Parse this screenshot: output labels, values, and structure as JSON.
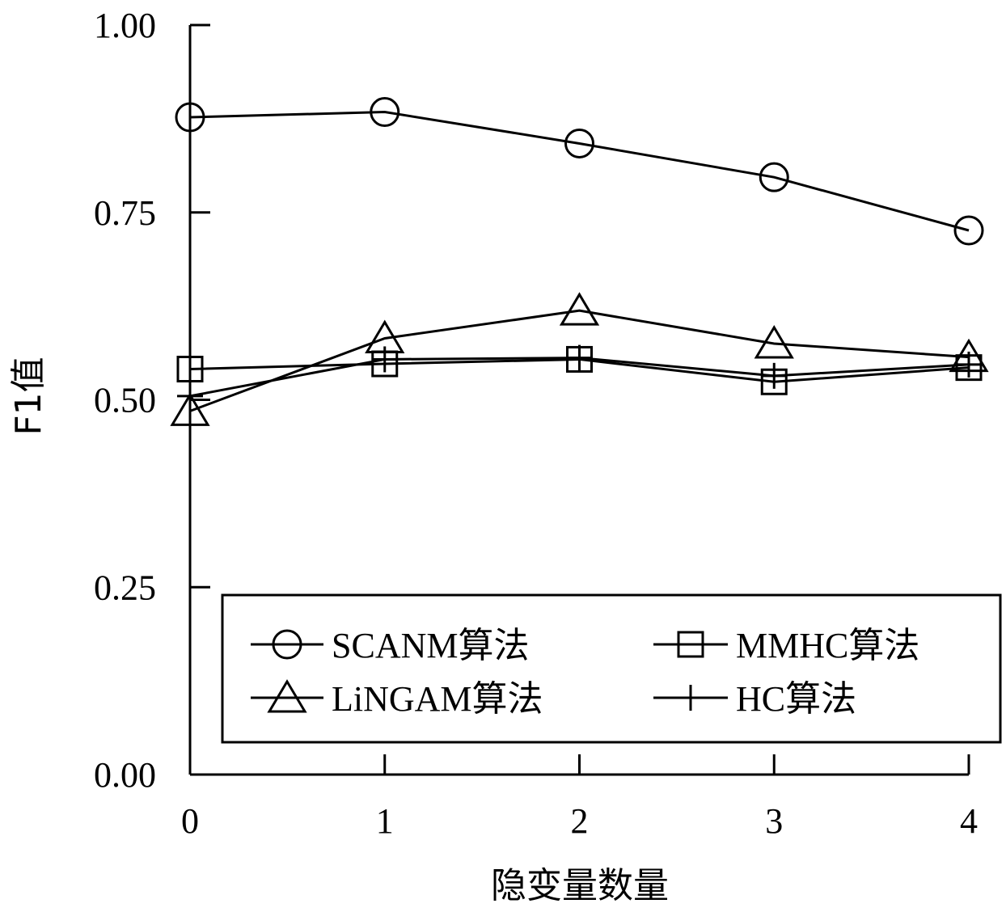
{
  "chart_data": {
    "type": "line",
    "xlabel": "隐变量数量",
    "ylabel": "F1值",
    "x": [
      0,
      1,
      2,
      3,
      4
    ],
    "xticks": [
      "0",
      "1",
      "2",
      "3",
      "4"
    ],
    "yticks": [
      "0.00",
      "0.25",
      "0.50",
      "0.75",
      "1.00"
    ],
    "xlim": [
      0,
      4
    ],
    "ylim": [
      0,
      1.0
    ],
    "grid": false,
    "legend_position": "bottom-right",
    "series": [
      {
        "name": "SCANM算法",
        "marker": "circle",
        "values": [
          0.877,
          0.884,
          0.842,
          0.797,
          0.726
        ]
      },
      {
        "name": "MMHC算法",
        "marker": "square",
        "values": [
          0.541,
          0.548,
          0.554,
          0.524,
          0.543
        ]
      },
      {
        "name": "LiNGAM算法",
        "marker": "triangle",
        "values": [
          0.485,
          0.582,
          0.619,
          0.575,
          0.557
        ]
      },
      {
        "name": "HC算法",
        "marker": "plus",
        "values": [
          0.505,
          0.554,
          0.556,
          0.532,
          0.547
        ]
      }
    ]
  }
}
